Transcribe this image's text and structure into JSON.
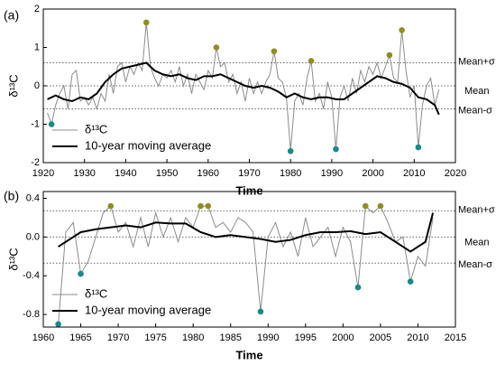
{
  "chart_data": [
    {
      "type": "line",
      "panel_label": "(a)",
      "xlabel": "Time",
      "ylabel": "δ¹³C",
      "xlim": [
        1920,
        2020
      ],
      "xticks": [
        1920,
        1930,
        1940,
        1950,
        1960,
        1970,
        1980,
        1990,
        2000,
        2010,
        2020
      ],
      "ylim": [
        -2,
        2
      ],
      "yticks": [
        -2,
        -1,
        0,
        1,
        2
      ],
      "legend": "lower left",
      "series": [
        {
          "name": "δ¹³C",
          "color": "#8c8c8c",
          "width": 1,
          "x": [
            1921,
            1922,
            1923,
            1924,
            1925,
            1926,
            1927,
            1928,
            1929,
            1930,
            1931,
            1932,
            1933,
            1934,
            1935,
            1936,
            1937,
            1938,
            1939,
            1940,
            1941,
            1942,
            1943,
            1944,
            1945,
            1946,
            1947,
            1948,
            1949,
            1950,
            1951,
            1952,
            1953,
            1954,
            1955,
            1956,
            1957,
            1958,
            1959,
            1960,
            1961,
            1962,
            1963,
            1964,
            1965,
            1966,
            1967,
            1968,
            1969,
            1970,
            1971,
            1972,
            1973,
            1974,
            1975,
            1976,
            1977,
            1978,
            1979,
            1980,
            1981,
            1982,
            1983,
            1984,
            1985,
            1986,
            1987,
            1988,
            1989,
            1990,
            1991,
            1992,
            1993,
            1994,
            1995,
            1996,
            1997,
            1998,
            1999,
            2000,
            2001,
            2002,
            2003,
            2004,
            2005,
            2006,
            2007,
            2008,
            2009,
            2010,
            2011,
            2012,
            2013,
            2014,
            2015,
            2016
          ],
          "values": [
            -0.7,
            -1.0,
            -0.5,
            -0.2,
            0.0,
            -0.6,
            0.3,
            0.4,
            -0.4,
            -0.3,
            -0.5,
            -0.3,
            -0.6,
            -0.2,
            -0.4,
            0.3,
            -0.2,
            0.5,
            0.6,
            0.1,
            0.5,
            0.3,
            0.6,
            0.4,
            1.65,
            0.5,
            0.2,
            0.0,
            0.3,
            0.2,
            0.4,
            0.1,
            0.5,
            0.0,
            0.3,
            -0.2,
            0.3,
            0.1,
            -0.1,
            0.4,
            0.2,
            1.0,
            0.5,
            0.6,
            0.1,
            0.3,
            -0.2,
            0.1,
            -0.4,
            0.2,
            -0.2,
            0.1,
            -0.2,
            0.1,
            0.3,
            0.9,
            0.2,
            0.1,
            -0.3,
            -1.7,
            -0.4,
            -0.2,
            -0.5,
            0.2,
            0.65,
            -0.4,
            -0.2,
            -0.6,
            0.1,
            -0.3,
            -1.65,
            -0.3,
            0.0,
            -0.4,
            0.2,
            -0.2,
            0.4,
            0.1,
            0.5,
            0.3,
            0.6,
            0.2,
            0.5,
            0.8,
            0.2,
            0.1,
            1.45,
            0.4,
            -0.3,
            0.0,
            -1.6,
            -0.5,
            0.0,
            0.2,
            -0.5,
            -0.1
          ]
        },
        {
          "name": "10-year moving average",
          "color": "#000000",
          "width": 2,
          "x": [
            1921,
            1923,
            1925,
            1927,
            1929,
            1931,
            1933,
            1935,
            1937,
            1939,
            1941,
            1943,
            1945,
            1947,
            1949,
            1951,
            1953,
            1955,
            1957,
            1959,
            1961,
            1963,
            1965,
            1967,
            1969,
            1971,
            1973,
            1975,
            1977,
            1979,
            1981,
            1983,
            1985,
            1987,
            1989,
            1991,
            1993,
            1995,
            1997,
            1999,
            2001,
            2003,
            2005,
            2007,
            2009,
            2011,
            2013,
            2015,
            2016
          ],
          "values": [
            -0.35,
            -0.25,
            -0.35,
            -0.4,
            -0.3,
            -0.35,
            -0.2,
            0.1,
            0.3,
            0.45,
            0.5,
            0.55,
            0.6,
            0.4,
            0.3,
            0.25,
            0.3,
            0.2,
            0.15,
            0.25,
            0.25,
            0.3,
            0.2,
            0.1,
            0.0,
            -0.05,
            0.0,
            -0.05,
            -0.15,
            -0.3,
            -0.2,
            -0.3,
            -0.35,
            -0.3,
            -0.3,
            -0.35,
            -0.35,
            -0.2,
            -0.05,
            0.1,
            0.25,
            0.2,
            0.1,
            0.05,
            -0.05,
            -0.3,
            -0.35,
            -0.5,
            -0.75
          ]
        }
      ],
      "markers": [
        {
          "color": "#8f8f1f",
          "x": [
            1945,
            1962,
            1976,
            1985,
            2004,
            2007
          ],
          "values": [
            1.65,
            1.0,
            0.9,
            0.65,
            0.8,
            1.45
          ]
        },
        {
          "color": "#178a8a",
          "x": [
            1922,
            1980,
            1991,
            2011
          ],
          "values": [
            -1.0,
            -1.7,
            -1.65,
            -1.6
          ]
        }
      ],
      "reference_lines": [
        {
          "value": 0.6,
          "label": "Mean+σ"
        },
        {
          "value": 0,
          "label": "Mean"
        },
        {
          "value": -0.6,
          "label": "Mean-σ"
        }
      ]
    },
    {
      "type": "line",
      "panel_label": "(b)",
      "xlabel": "Time",
      "ylabel": "δ¹³C",
      "xlim": [
        1960,
        2015
      ],
      "xticks": [
        1960,
        1965,
        1970,
        1975,
        1980,
        1985,
        1990,
        1995,
        2000,
        2005,
        2010,
        2015
      ],
      "ylim": [
        -0.93,
        0.47
      ],
      "yticks": [
        -0.8,
        -0.4,
        {
          "value": 0,
          "label": "0.0"
        },
        0.4
      ],
      "legend": "lower left",
      "series": [
        {
          "name": "δ¹³C",
          "color": "#8c8c8c",
          "width": 1,
          "x": [
            1962,
            1963,
            1964,
            1965,
            1966,
            1967,
            1968,
            1969,
            1970,
            1971,
            1972,
            1973,
            1974,
            1975,
            1976,
            1977,
            1978,
            1979,
            1980,
            1981,
            1982,
            1983,
            1984,
            1985,
            1986,
            1987,
            1988,
            1989,
            1990,
            1991,
            1992,
            1993,
            1994,
            1995,
            1996,
            1997,
            1998,
            1999,
            2000,
            2001,
            2002,
            2003,
            2004,
            2005,
            2006,
            2007,
            2008,
            2009,
            2010,
            2011,
            2012
          ],
          "values": [
            -0.9,
            0.05,
            0.15,
            -0.38,
            -0.25,
            0.0,
            0.25,
            0.32,
            0.05,
            0.15,
            -0.1,
            0.2,
            -0.1,
            0.25,
            0.0,
            0.2,
            -0.05,
            0.2,
            0.1,
            0.32,
            0.32,
            0.1,
            0.15,
            0.05,
            0.2,
            0.15,
            0.05,
            -0.77,
            0.0,
            0.15,
            -0.1,
            0.05,
            -0.2,
            0.2,
            -0.1,
            0.0,
            0.1,
            -0.2,
            0.1,
            -0.05,
            -0.52,
            0.32,
            0.25,
            0.32,
            0.15,
            -0.05,
            0.0,
            -0.46,
            -0.2,
            -0.3,
            0.2
          ]
        },
        {
          "name": "10-year moving average",
          "color": "#000000",
          "width": 2,
          "x": [
            1962,
            1963,
            1965,
            1967,
            1969,
            1971,
            1973,
            1975,
            1977,
            1979,
            1981,
            1983,
            1985,
            1987,
            1989,
            1991,
            1993,
            1995,
            1997,
            1999,
            2001,
            2003,
            2005,
            2007,
            2009,
            2010,
            2011,
            2012
          ],
          "values": [
            -0.1,
            -0.05,
            0.05,
            0.08,
            0.1,
            0.12,
            0.1,
            0.15,
            0.14,
            0.14,
            0.05,
            0.0,
            0.02,
            0.0,
            -0.02,
            -0.05,
            -0.03,
            0.02,
            0.05,
            0.05,
            0.06,
            0.03,
            0.05,
            -0.05,
            -0.15,
            -0.1,
            -0.05,
            0.25
          ]
        }
      ],
      "markers": [
        {
          "color": "#8f8f1f",
          "x": [
            1969,
            1981,
            1982,
            2003,
            2005
          ],
          "values": [
            0.32,
            0.32,
            0.32,
            0.32,
            0.32
          ]
        },
        {
          "color": "#178a8a",
          "x": [
            1962,
            1965,
            1989,
            2002,
            2009
          ],
          "values": [
            -0.9,
            -0.38,
            -0.77,
            -0.52,
            -0.46
          ]
        }
      ],
      "reference_lines": [
        {
          "value": 0.27,
          "label": "Mean+σ"
        },
        {
          "value": 0,
          "label": "Mean"
        },
        {
          "value": -0.27,
          "label": "Mean-σ"
        }
      ]
    }
  ]
}
